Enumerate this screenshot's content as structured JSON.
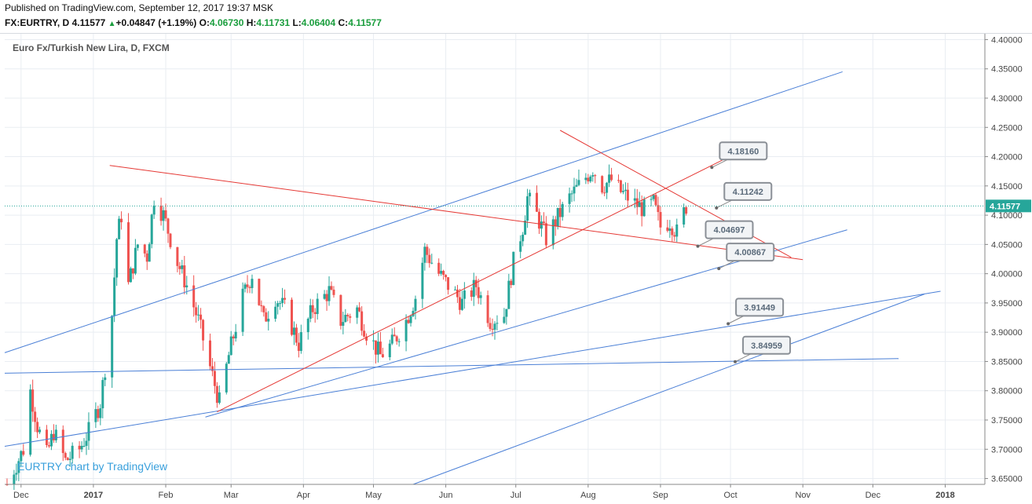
{
  "header": {
    "published": "Published on TradingView.com, September 12, 2017 19:37 MSK",
    "symbol": "FX:EURTRY, D",
    "last": "4.11577",
    "change_arrow": "▲",
    "change": "+0.04847 (+1.19%)",
    "o_label": "O:",
    "o_value": "4.06730",
    "h_label": "H:",
    "h_value": "4.11731",
    "l_label": "L:",
    "l_value": "4.06404",
    "c_label": "C:",
    "c_value": "4.11577"
  },
  "colors": {
    "up": "#26a69a",
    "down": "#ef5350",
    "blue_line": "#4a7fd6",
    "red_line": "#e53935",
    "grid": "#e9edf2",
    "price_label_bg": "#26a69a"
  },
  "chart_data": {
    "type": "candlestick",
    "title": "Euro Fx/Turkish New Lira, D, FXCM",
    "watermark": "EURTRY chart by TradingView",
    "x_tick_labels": [
      "Dec",
      "2017",
      "Feb",
      "Mar",
      "Apr",
      "May",
      "Jun",
      "Jul",
      "Aug",
      "Sep",
      "Oct",
      "Nov",
      "Dec",
      "2018"
    ],
    "x_tick_dates": [
      "2016-12-01",
      "2017-01-01",
      "2017-02-01",
      "2017-03-01",
      "2017-04-01",
      "2017-05-01",
      "2017-06-01",
      "2017-07-01",
      "2017-08-01",
      "2017-09-01",
      "2017-10-01",
      "2017-11-01",
      "2017-12-01",
      "2018-01-01"
    ],
    "y_tick_labels": [
      "4.40000",
      "4.35000",
      "4.30000",
      "4.25000",
      "4.20000",
      "4.15000",
      "4.10000",
      "4.05000",
      "4.00000",
      "3.95000",
      "3.90000",
      "3.85000",
      "3.80000",
      "3.75000",
      "3.70000",
      "3.65000"
    ],
    "y_range": [
      3.64,
      4.41
    ],
    "x_range": [
      "2016-11-24",
      "2018-01-18"
    ],
    "last_price": 4.11577,
    "last_price_label": "4.11577",
    "close_path": [
      [
        "2016-11-25",
        3.64
      ],
      [
        "2016-12-02",
        3.7
      ],
      [
        "2016-12-05",
        3.8
      ],
      [
        "2016-12-08",
        3.74
      ],
      [
        "2016-12-12",
        3.69
      ],
      [
        "2016-12-15",
        3.73
      ],
      [
        "2016-12-20",
        3.68
      ],
      [
        "2016-12-26",
        3.7
      ],
      [
        "2016-12-30",
        3.73
      ],
      [
        "2017-01-04",
        3.78
      ],
      [
        "2017-01-09",
        3.93
      ],
      [
        "2017-01-11",
        4.06
      ],
      [
        "2017-01-13",
        4.1
      ],
      [
        "2017-01-16",
        3.98
      ],
      [
        "2017-01-20",
        4.05
      ],
      [
        "2017-01-24",
        4.03
      ],
      [
        "2017-01-27",
        4.13
      ],
      [
        "2017-01-31",
        4.1
      ],
      [
        "2017-02-06",
        4.02
      ],
      [
        "2017-02-10",
        3.98
      ],
      [
        "2017-02-15",
        3.92
      ],
      [
        "2017-02-20",
        3.84
      ],
      [
        "2017-02-24",
        3.78
      ],
      [
        "2017-02-28",
        3.86
      ],
      [
        "2017-03-06",
        3.96
      ],
      [
        "2017-03-10",
        4.0
      ],
      [
        "2017-03-15",
        3.92
      ],
      [
        "2017-03-20",
        3.96
      ],
      [
        "2017-03-24",
        3.94
      ],
      [
        "2017-03-30",
        3.88
      ],
      [
        "2017-04-05",
        3.94
      ],
      [
        "2017-04-12",
        3.97
      ],
      [
        "2017-04-17",
        3.92
      ],
      [
        "2017-04-24",
        3.94
      ],
      [
        "2017-04-28",
        3.9
      ],
      [
        "2017-05-04",
        3.86
      ],
      [
        "2017-05-09",
        3.88
      ],
      [
        "2017-05-15",
        3.92
      ],
      [
        "2017-05-19",
        3.96
      ],
      [
        "2017-05-23",
        4.04
      ],
      [
        "2017-05-29",
        4.0
      ],
      [
        "2017-06-02",
        3.98
      ],
      [
        "2017-06-08",
        3.95
      ],
      [
        "2017-06-14",
        3.98
      ],
      [
        "2017-06-20",
        3.92
      ],
      [
        "2017-06-26",
        3.93
      ],
      [
        "2017-06-30",
        4.02
      ],
      [
        "2017-07-04",
        4.08
      ],
      [
        "2017-07-06",
        4.13
      ],
      [
        "2017-07-10",
        4.1
      ],
      [
        "2017-07-14",
        4.06
      ],
      [
        "2017-07-18",
        4.09
      ],
      [
        "2017-07-24",
        4.13
      ],
      [
        "2017-07-28",
        4.15
      ],
      [
        "2017-08-03",
        4.18
      ],
      [
        "2017-08-07",
        4.15
      ],
      [
        "2017-08-11",
        4.16
      ],
      [
        "2017-08-15",
        4.14
      ],
      [
        "2017-08-21",
        4.12
      ],
      [
        "2017-08-25",
        4.11
      ],
      [
        "2017-08-29",
        4.12
      ],
      [
        "2017-09-01",
        4.08
      ],
      [
        "2017-09-05",
        4.09
      ],
      [
        "2017-09-08",
        4.07
      ],
      [
        "2017-09-12",
        4.11577
      ]
    ],
    "trend_lines": [
      {
        "color": "blue",
        "p1": [
          "2016-11-24",
          3.865
        ],
        "p2": [
          "2017-11-18",
          4.345
        ]
      },
      {
        "color": "blue",
        "p1": [
          "2016-11-24",
          3.705
        ],
        "p2": [
          "2017-12-30",
          3.97
        ]
      },
      {
        "color": "blue",
        "p1": [
          "2017-02-18",
          3.755
        ],
        "p2": [
          "2017-11-20",
          4.075
        ]
      },
      {
        "color": "blue",
        "p1": [
          "2016-11-24",
          3.83
        ],
        "p2": [
          "2017-12-12",
          3.855
        ]
      },
      {
        "color": "blue",
        "p1": [
          "2017-05-18",
          3.64
        ],
        "p2": [
          "2017-12-23",
          3.965
        ]
      },
      {
        "color": "red",
        "p1": [
          "2017-02-23",
          3.764
        ],
        "p2": [
          "2017-10-03",
          4.205
        ]
      },
      {
        "color": "red",
        "p1": [
          "2017-01-08",
          4.185
        ],
        "p2": [
          "2017-11-01",
          4.024
        ]
      },
      {
        "color": "red",
        "p1": [
          "2017-07-20",
          4.245
        ],
        "p2": [
          "2017-10-27",
          4.028
        ]
      }
    ],
    "callouts": [
      {
        "label": "4.18160",
        "anchor": [
          "2017-09-23",
          4.1816
        ]
      },
      {
        "label": "4.11242",
        "anchor": [
          "2017-09-25",
          4.11242
        ]
      },
      {
        "label": "4.04697",
        "anchor": [
          "2017-09-17",
          4.04697
        ]
      },
      {
        "label": "4.00867",
        "anchor": [
          "2017-09-26",
          4.00867
        ]
      },
      {
        "label": "3.91449",
        "anchor": [
          "2017-09-30",
          3.91449
        ]
      },
      {
        "label": "3.84959",
        "anchor": [
          "2017-10-03",
          3.84959
        ]
      }
    ]
  }
}
